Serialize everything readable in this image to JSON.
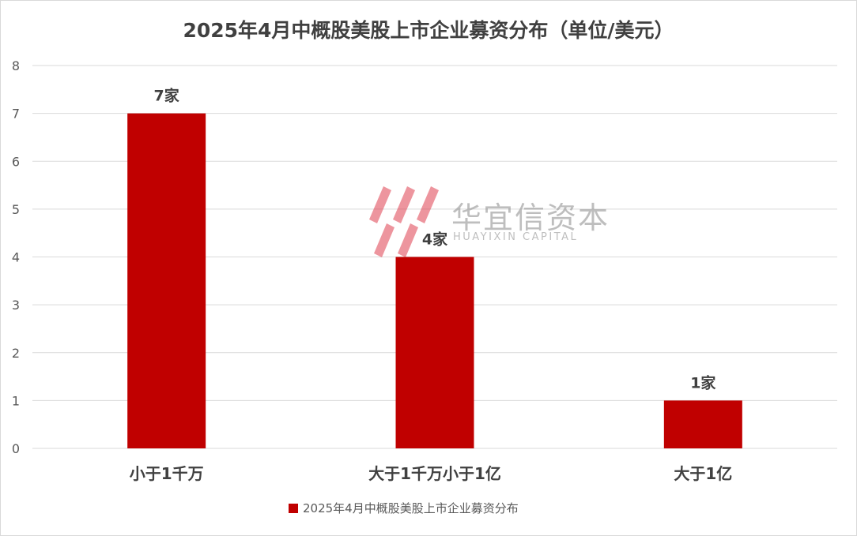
{
  "chart_data": {
    "type": "bar",
    "title": "2025年4月中概股美股上市企业募资分布（单位/美元）",
    "categories": [
      "小于1千万",
      "大于1千万小于1亿",
      "大于1亿"
    ],
    "series": [
      {
        "name": "2025年4月中概股美股上市企业募资分布",
        "values": [
          7,
          4,
          1
        ],
        "data_labels": [
          "7家",
          "4家",
          "1家"
        ],
        "color": "#c00000"
      }
    ],
    "y_ticks": [
      "0",
      "1",
      "2",
      "3",
      "4",
      "5",
      "6",
      "7",
      "8"
    ],
    "ylim": [
      0,
      8
    ],
    "grid": true,
    "legend": "bottom"
  },
  "watermark": {
    "name_cn": "华宜信资本",
    "name_en": "HUAYIXIN CAPITAL"
  },
  "colors": {
    "bar": "#c00000",
    "grid": "#d9d9d9",
    "text": "#404040",
    "watermark": "#e0404f"
  }
}
